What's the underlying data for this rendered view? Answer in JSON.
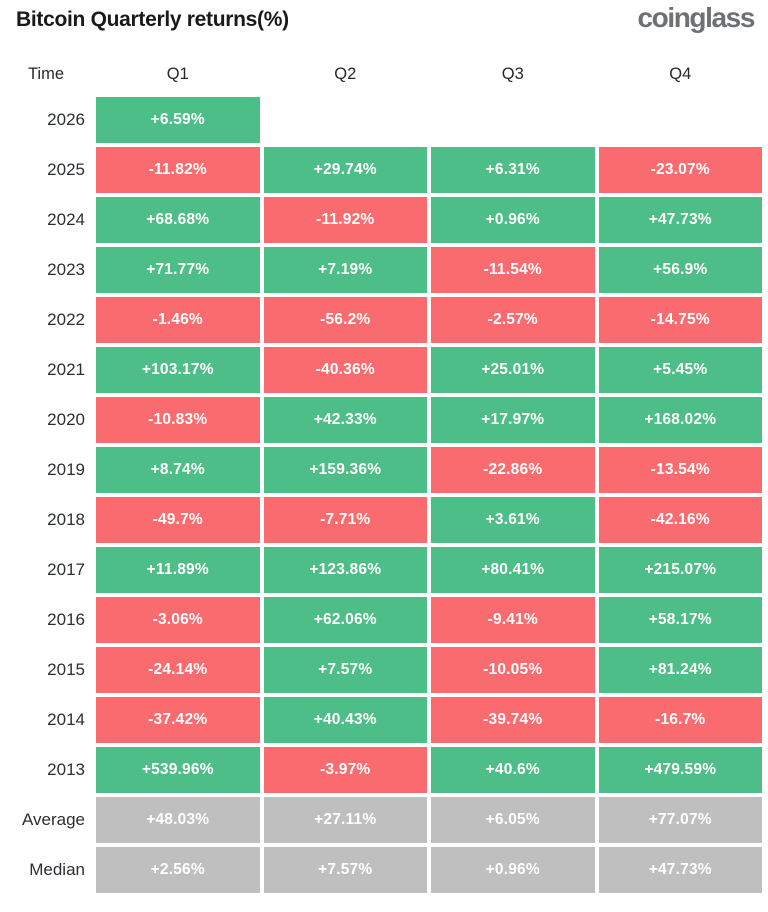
{
  "header": {
    "title": "Bitcoin Quarterly returns(%)",
    "logo": "coinglass"
  },
  "colors": {
    "positive": "#4dbe87",
    "negative": "#f96b6e",
    "neutral": "#bfbfbf"
  },
  "table": {
    "columns": [
      "Time",
      "Q1",
      "Q2",
      "Q3",
      "Q4"
    ],
    "rows": [
      {
        "label": "2026",
        "cells": [
          {
            "value": "+6.59%",
            "state": "positive"
          },
          null,
          null,
          null
        ]
      },
      {
        "label": "2025",
        "cells": [
          {
            "value": "-11.82%",
            "state": "negative"
          },
          {
            "value": "+29.74%",
            "state": "positive"
          },
          {
            "value": "+6.31%",
            "state": "positive"
          },
          {
            "value": "-23.07%",
            "state": "negative"
          }
        ]
      },
      {
        "label": "2024",
        "cells": [
          {
            "value": "+68.68%",
            "state": "positive"
          },
          {
            "value": "-11.92%",
            "state": "negative"
          },
          {
            "value": "+0.96%",
            "state": "positive"
          },
          {
            "value": "+47.73%",
            "state": "positive"
          }
        ]
      },
      {
        "label": "2023",
        "cells": [
          {
            "value": "+71.77%",
            "state": "positive"
          },
          {
            "value": "+7.19%",
            "state": "positive"
          },
          {
            "value": "-11.54%",
            "state": "negative"
          },
          {
            "value": "+56.9%",
            "state": "positive"
          }
        ]
      },
      {
        "label": "2022",
        "cells": [
          {
            "value": "-1.46%",
            "state": "negative"
          },
          {
            "value": "-56.2%",
            "state": "negative"
          },
          {
            "value": "-2.57%",
            "state": "negative"
          },
          {
            "value": "-14.75%",
            "state": "negative"
          }
        ]
      },
      {
        "label": "2021",
        "cells": [
          {
            "value": "+103.17%",
            "state": "positive"
          },
          {
            "value": "-40.36%",
            "state": "negative"
          },
          {
            "value": "+25.01%",
            "state": "positive"
          },
          {
            "value": "+5.45%",
            "state": "positive"
          }
        ]
      },
      {
        "label": "2020",
        "cells": [
          {
            "value": "-10.83%",
            "state": "negative"
          },
          {
            "value": "+42.33%",
            "state": "positive"
          },
          {
            "value": "+17.97%",
            "state": "positive"
          },
          {
            "value": "+168.02%",
            "state": "positive"
          }
        ]
      },
      {
        "label": "2019",
        "cells": [
          {
            "value": "+8.74%",
            "state": "positive"
          },
          {
            "value": "+159.36%",
            "state": "positive"
          },
          {
            "value": "-22.86%",
            "state": "negative"
          },
          {
            "value": "-13.54%",
            "state": "negative"
          }
        ]
      },
      {
        "label": "2018",
        "cells": [
          {
            "value": "-49.7%",
            "state": "negative"
          },
          {
            "value": "-7.71%",
            "state": "negative"
          },
          {
            "value": "+3.61%",
            "state": "positive"
          },
          {
            "value": "-42.16%",
            "state": "negative"
          }
        ]
      },
      {
        "label": "2017",
        "cells": [
          {
            "value": "+11.89%",
            "state": "positive"
          },
          {
            "value": "+123.86%",
            "state": "positive"
          },
          {
            "value": "+80.41%",
            "state": "positive"
          },
          {
            "value": "+215.07%",
            "state": "positive"
          }
        ]
      },
      {
        "label": "2016",
        "cells": [
          {
            "value": "-3.06%",
            "state": "negative"
          },
          {
            "value": "+62.06%",
            "state": "positive"
          },
          {
            "value": "-9.41%",
            "state": "negative"
          },
          {
            "value": "+58.17%",
            "state": "positive"
          }
        ]
      },
      {
        "label": "2015",
        "cells": [
          {
            "value": "-24.14%",
            "state": "negative"
          },
          {
            "value": "+7.57%",
            "state": "positive"
          },
          {
            "value": "-10.05%",
            "state": "negative"
          },
          {
            "value": "+81.24%",
            "state": "positive"
          }
        ]
      },
      {
        "label": "2014",
        "cells": [
          {
            "value": "-37.42%",
            "state": "negative"
          },
          {
            "value": "+40.43%",
            "state": "positive"
          },
          {
            "value": "-39.74%",
            "state": "negative"
          },
          {
            "value": "-16.7%",
            "state": "negative"
          }
        ]
      },
      {
        "label": "2013",
        "cells": [
          {
            "value": "+539.96%",
            "state": "positive"
          },
          {
            "value": "-3.97%",
            "state": "negative"
          },
          {
            "value": "+40.6%",
            "state": "positive"
          },
          {
            "value": "+479.59%",
            "state": "positive"
          }
        ]
      },
      {
        "label": "Average",
        "cells": [
          {
            "value": "+48.03%",
            "state": "neutral"
          },
          {
            "value": "+27.11%",
            "state": "neutral"
          },
          {
            "value": "+6.05%",
            "state": "neutral"
          },
          {
            "value": "+77.07%",
            "state": "neutral"
          }
        ]
      },
      {
        "label": "Median",
        "cells": [
          {
            "value": "+2.56%",
            "state": "neutral"
          },
          {
            "value": "+7.57%",
            "state": "neutral"
          },
          {
            "value": "+0.96%",
            "state": "neutral"
          },
          {
            "value": "+47.73%",
            "state": "neutral"
          }
        ]
      }
    ]
  },
  "chart_data": {
    "type": "heatmap",
    "title": "Bitcoin Quarterly returns(%)",
    "columns": [
      "Q1",
      "Q2",
      "Q3",
      "Q4"
    ],
    "rows": [
      "2026",
      "2025",
      "2024",
      "2023",
      "2022",
      "2021",
      "2020",
      "2019",
      "2018",
      "2017",
      "2016",
      "2015",
      "2014",
      "2013",
      "Average",
      "Median"
    ],
    "values": [
      [
        6.59,
        null,
        null,
        null
      ],
      [
        -11.82,
        29.74,
        6.31,
        -23.07
      ],
      [
        68.68,
        -11.92,
        0.96,
        47.73
      ],
      [
        71.77,
        7.19,
        -11.54,
        56.9
      ],
      [
        -1.46,
        -56.2,
        -2.57,
        -14.75
      ],
      [
        103.17,
        -40.36,
        25.01,
        5.45
      ],
      [
        -10.83,
        42.33,
        17.97,
        168.02
      ],
      [
        8.74,
        159.36,
        -22.86,
        -13.54
      ],
      [
        -49.7,
        -7.71,
        3.61,
        -42.16
      ],
      [
        11.89,
        123.86,
        80.41,
        215.07
      ],
      [
        -3.06,
        62.06,
        -9.41,
        58.17
      ],
      [
        -24.14,
        7.57,
        -10.05,
        81.24
      ],
      [
        -37.42,
        40.43,
        -39.74,
        -16.7
      ],
      [
        539.96,
        -3.97,
        40.6,
        479.59
      ],
      [
        48.03,
        27.11,
        6.05,
        77.07
      ],
      [
        2.56,
        7.57,
        0.96,
        47.73
      ]
    ],
    "color_coding": {
      "positive": "#4dbe87",
      "negative": "#f96b6e",
      "aggregate_rows": "#bfbfbf"
    },
    "legend_position": "none",
    "grid": false
  }
}
